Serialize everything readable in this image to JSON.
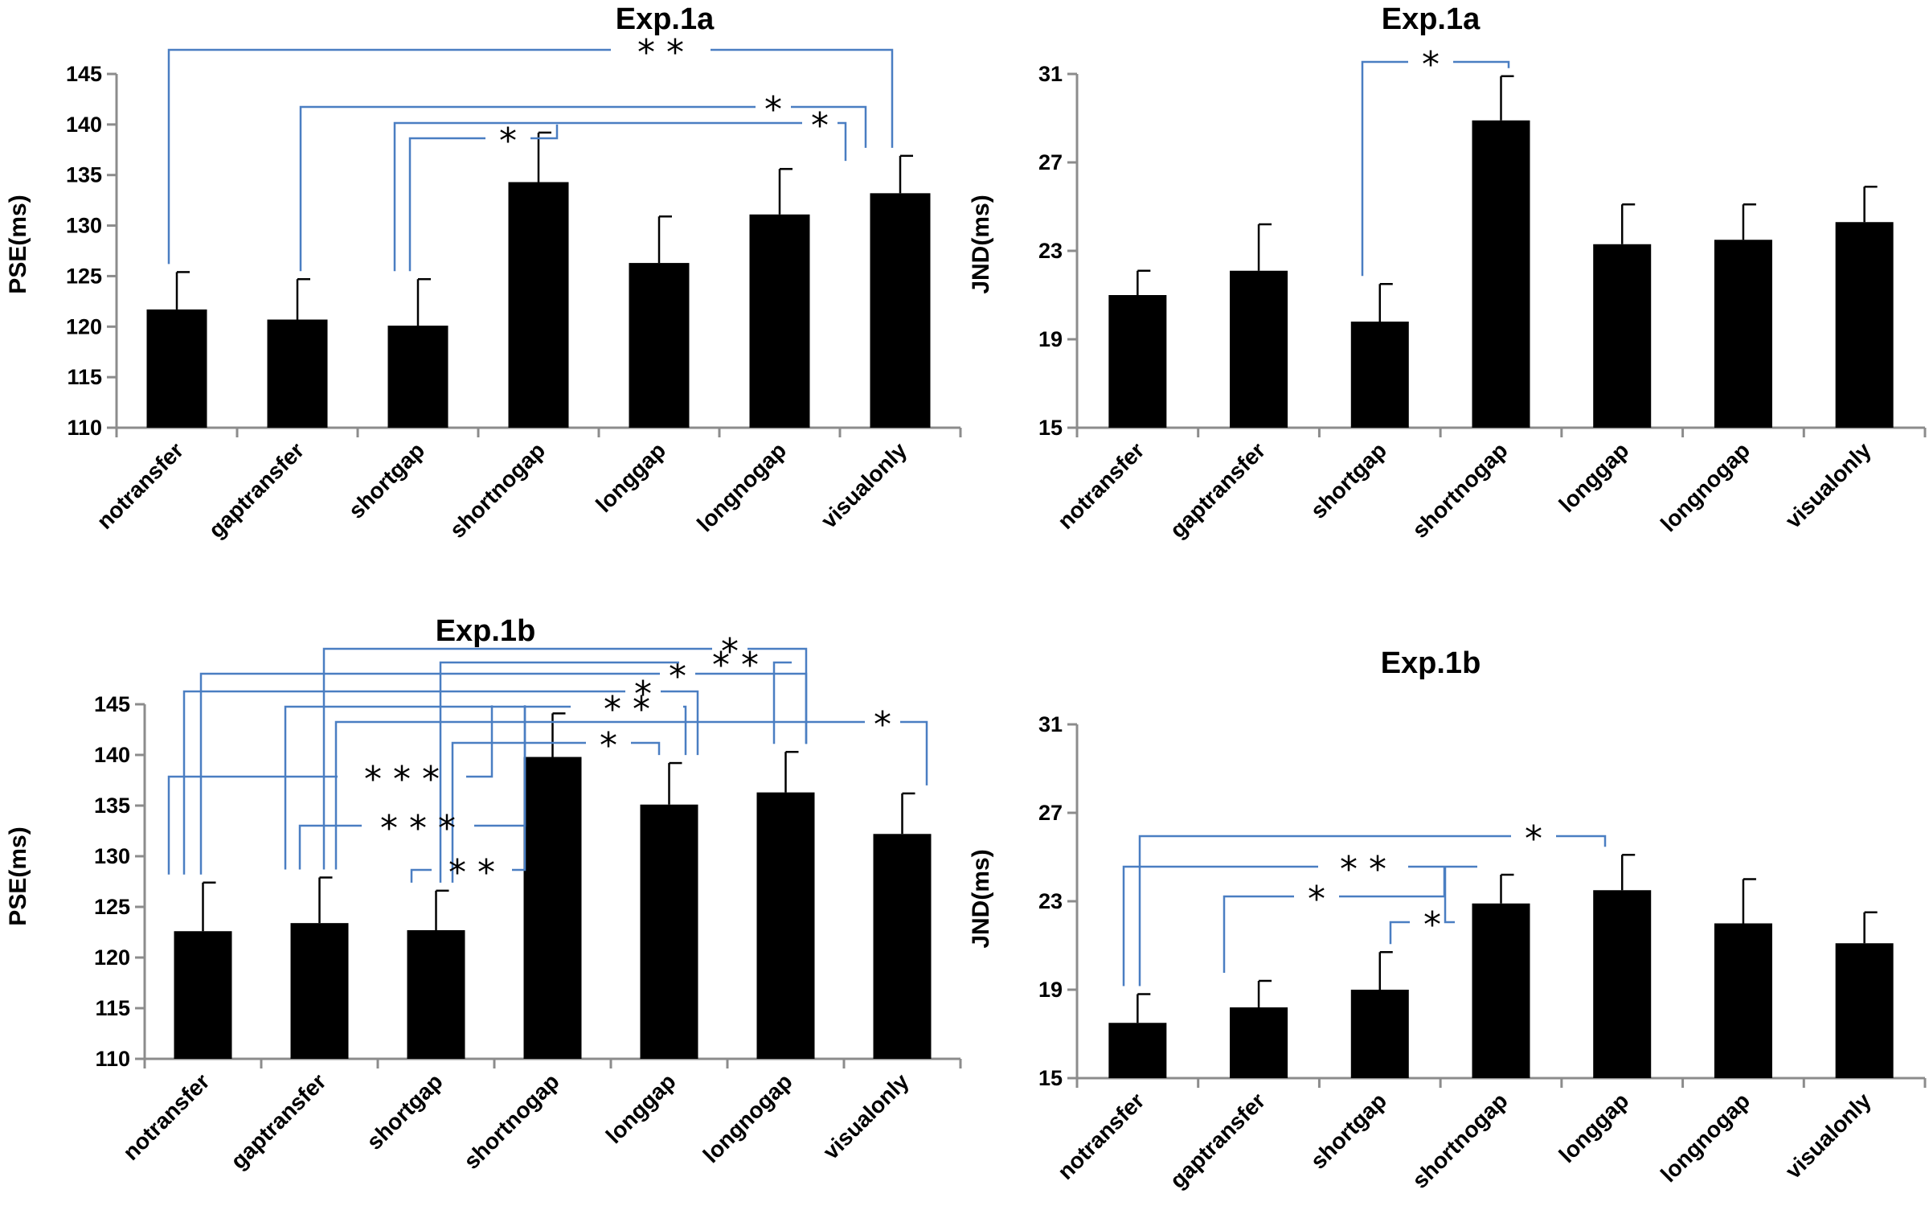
{
  "chart_data": [
    {
      "id": "p1",
      "type": "bar",
      "title": "Exp.1a",
      "xlabel": "",
      "ylabel": "PSE(ms)",
      "ylim": [
        110,
        145
      ],
      "yticks": [
        110,
        115,
        120,
        125,
        130,
        135,
        140,
        145
      ],
      "categories": [
        "notransfer",
        "gaptransfer",
        "shortgap",
        "shortnogap",
        "longgap",
        "longnogap",
        "visualonly"
      ],
      "values": [
        121.7,
        120.7,
        120.1,
        134.3,
        126.3,
        131.1,
        133.2
      ],
      "errors": [
        3.7,
        4.0,
        4.6,
        4.9,
        4.6,
        4.5,
        3.7
      ],
      "significance": [
        {
          "from": 0,
          "to": 6,
          "label": "* *"
        },
        {
          "from": 1,
          "to": 6,
          "label": "*"
        },
        {
          "from": 2,
          "to": 5,
          "label": "*"
        },
        {
          "from": 2,
          "to": 3,
          "label": "*"
        }
      ]
    },
    {
      "id": "p2",
      "type": "bar",
      "title": "Exp.1a",
      "xlabel": "",
      "ylabel": "JND(ms)",
      "ylim": [
        15,
        31
      ],
      "yticks": [
        15,
        19,
        23,
        27,
        31
      ],
      "categories": [
        "notransfer",
        "gaptransfer",
        "shortgap",
        "shortnogap",
        "longgap",
        "longnogap",
        "visualonly"
      ],
      "values": [
        21.0,
        22.1,
        19.8,
        28.9,
        23.3,
        23.5,
        24.3
      ],
      "errors": [
        1.1,
        2.1,
        1.7,
        2.0,
        1.8,
        1.6,
        1.6
      ],
      "significance": [
        {
          "from": 2,
          "to": 3,
          "label": "*"
        }
      ]
    },
    {
      "id": "p3",
      "type": "bar",
      "title": "Exp.1b",
      "xlabel": "",
      "ylabel": "PSE(ms)",
      "ylim": [
        110,
        145
      ],
      "yticks": [
        110,
        115,
        120,
        125,
        130,
        135,
        140,
        145
      ],
      "categories": [
        "notransfer",
        "gaptransfer",
        "shortgap",
        "shortnogap",
        "longgap",
        "longnogap",
        "visualonly"
      ],
      "values": [
        122.6,
        123.4,
        122.7,
        139.8,
        135.1,
        136.3,
        132.2
      ],
      "errors": [
        4.8,
        4.5,
        3.9,
        4.3,
        4.1,
        4.0,
        4.0
      ],
      "significance": [
        {
          "from": 1,
          "to": 5,
          "label": "*"
        },
        {
          "from": 0,
          "to": 5,
          "label": "*"
        },
        {
          "from": 2,
          "to": 5,
          "label": "* *"
        },
        {
          "from": 0,
          "to": 4,
          "label": "*"
        },
        {
          "from": 1,
          "to": 4,
          "label": "* *"
        },
        {
          "from": 1,
          "to": 6,
          "label": "*"
        },
        {
          "from": 2,
          "to": 4,
          "label": "*"
        },
        {
          "from": 0,
          "to": 3,
          "label": "* * *"
        },
        {
          "from": 1,
          "to": 3,
          "label": "* * *"
        },
        {
          "from": 2,
          "to": 3,
          "label": "* *"
        }
      ]
    },
    {
      "id": "p4",
      "type": "bar",
      "title": "Exp.1b",
      "xlabel": "",
      "ylabel": "JND(ms)",
      "ylim": [
        15,
        31
      ],
      "yticks": [
        15,
        19,
        23,
        27,
        31
      ],
      "categories": [
        "notransfer",
        "gaptransfer",
        "shortgap",
        "shortnogap",
        "longgap",
        "longnogap",
        "visualonly"
      ],
      "values": [
        17.5,
        18.2,
        19.0,
        22.9,
        23.5,
        22.0,
        21.1
      ],
      "errors": [
        1.3,
        1.2,
        1.7,
        1.3,
        1.6,
        2.0,
        1.4
      ],
      "significance": [
        {
          "from": 0,
          "to": 4,
          "label": "*"
        },
        {
          "from": 0,
          "to": 3,
          "label": "* *"
        },
        {
          "from": 1,
          "to": 3,
          "label": "*"
        },
        {
          "from": 2,
          "to": 3,
          "label": "*"
        }
      ]
    }
  ]
}
